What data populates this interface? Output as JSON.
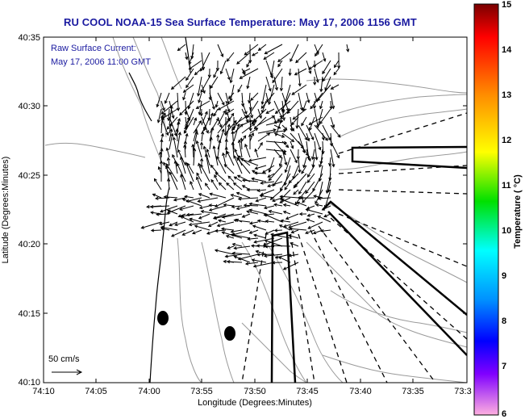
{
  "title": "RU COOL  NOAA-15  Sea Surface Temperature:  May 17, 2006 1156 GMT",
  "info": {
    "line1": "Raw Surface Current:",
    "line2": "May 17, 2006 11:00 GMT"
  },
  "axes": {
    "xlabel": "Longitude (Degrees:Minutes)",
    "ylabel": "Latitude (Degrees:Minutes)",
    "xticks": [
      "74:10",
      "74:05",
      "74:00",
      "73:55",
      "73:50",
      "73:45",
      "73:40",
      "73:35",
      "73:3"
    ],
    "yticks": [
      "40:35",
      "40:30",
      "40:25",
      "40:20",
      "40:15",
      "40:10"
    ]
  },
  "scale_label": "50 cm/s",
  "colorbar": {
    "label": "Temperature ( °C)",
    "ticks": [
      "15",
      "14",
      "13",
      "12",
      "11",
      "10",
      "9",
      "8",
      "7",
      "6"
    ],
    "colors": [
      "#8b0000",
      "#ff0000",
      "#ff8c00",
      "#ffff00",
      "#00ff00",
      "#00ffff",
      "#0080ff",
      "#0000ff",
      "#8000ff",
      "#ff00ff",
      "#ffb0d8"
    ]
  }
}
